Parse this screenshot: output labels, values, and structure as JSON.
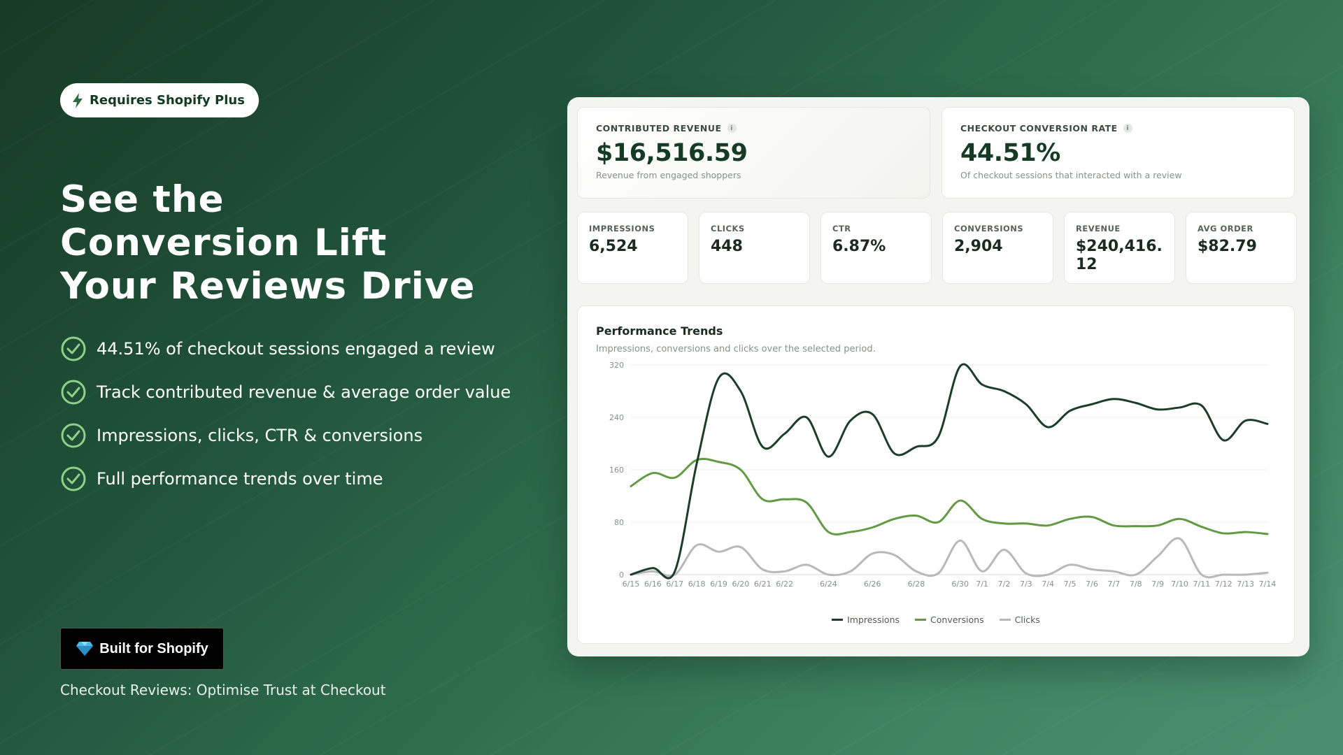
{
  "badge": {
    "label": "Requires Shopify Plus",
    "icon": "lightning-bolt-icon"
  },
  "hero": {
    "lines": [
      "See the",
      "Conversion Lift",
      "Your Reviews Drive"
    ]
  },
  "features": [
    "44.51% of checkout sessions engaged a review",
    "Track contributed revenue & average order value",
    "Impressions, clicks, CTR & conversions",
    "Full performance trends over time"
  ],
  "shopify_button": {
    "label": "Built for Shopify",
    "icon": "diamond-icon"
  },
  "footer": {
    "text": "Checkout Reviews: Optimise Trust at Checkout"
  },
  "dashboard": {
    "contributed": {
      "label": "CONTRIBUTED REVENUE",
      "value": "$16,516.59",
      "sub": "Revenue from engaged shoppers"
    },
    "conversion_rate": {
      "label": "CHECKOUT CONVERSION RATE",
      "value": "44.51%",
      "sub": "Of checkout sessions that interacted with a review"
    },
    "metrics": [
      {
        "label": "IMPRESSIONS",
        "value": "6,524"
      },
      {
        "label": "CLICKS",
        "value": "448"
      },
      {
        "label": "CTR",
        "value": "6.87%"
      },
      {
        "label": "CONVERSIONS",
        "value": "2,904"
      },
      {
        "label": "REVENUE",
        "value": "$240,416.12"
      },
      {
        "label": "AVG ORDER",
        "value": "$82.79"
      }
    ]
  },
  "chart_data": {
    "type": "line",
    "title": "Performance Trends",
    "subtitle": "Impressions, conversions and clicks over the selected period.",
    "ylim": [
      0,
      320
    ],
    "yticks": [
      0,
      80,
      160,
      240,
      320
    ],
    "x_tick_labels": [
      "6/15",
      "6/16",
      "6/17",
      "6/18",
      "6/19",
      "6/20",
      "6/21",
      "6/22",
      "6/24",
      "6/26",
      "6/28",
      "6/30",
      "7/1",
      "7/2",
      "7/3",
      "7/4",
      "7/5",
      "7/6",
      "7/7",
      "7/8",
      "7/9",
      "7/10",
      "7/11",
      "7/12",
      "7/13",
      "7/14"
    ],
    "x": [
      "6/15",
      "6/16",
      "6/17",
      "6/18",
      "6/19",
      "6/20",
      "6/21",
      "6/22",
      "6/23",
      "6/24",
      "6/25",
      "6/26",
      "6/27",
      "6/28",
      "6/29",
      "6/30",
      "7/1",
      "7/2",
      "7/3",
      "7/4",
      "7/5",
      "7/6",
      "7/7",
      "7/8",
      "7/9",
      "7/10",
      "7/11",
      "7/12",
      "7/13",
      "7/14"
    ],
    "series": [
      {
        "name": "Impressions",
        "color": "#1c3d27",
        "values": [
          0,
          10,
          5,
          170,
          300,
          280,
          195,
          215,
          240,
          180,
          235,
          245,
          185,
          195,
          210,
          318,
          290,
          280,
          260,
          225,
          250,
          260,
          268,
          262,
          252,
          255,
          258,
          205,
          235,
          230
        ]
      },
      {
        "name": "Conversions",
        "color": "#629a44",
        "values": [
          135,
          155,
          148,
          175,
          172,
          160,
          115,
          115,
          110,
          65,
          65,
          72,
          85,
          90,
          80,
          113,
          85,
          78,
          78,
          75,
          85,
          88,
          75,
          74,
          75,
          85,
          73,
          63,
          65,
          62
        ]
      },
      {
        "name": "Clicks",
        "color": "#b8b8b8",
        "values": [
          0,
          5,
          0,
          45,
          35,
          42,
          8,
          5,
          15,
          0,
          5,
          32,
          30,
          5,
          2,
          52,
          5,
          38,
          2,
          0,
          15,
          8,
          5,
          0,
          28,
          55,
          0,
          0,
          0,
          3
        ]
      }
    ],
    "legend_position": "bottom",
    "grid": true
  }
}
